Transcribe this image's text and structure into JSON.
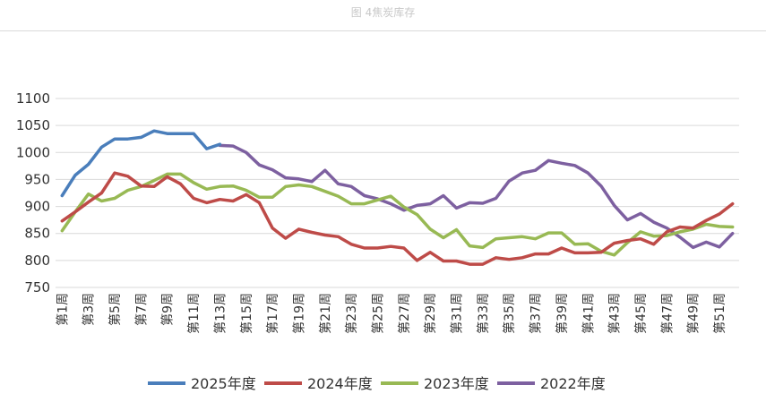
{
  "caption": "图 4焦炭库存",
  "chart_data": {
    "type": "line",
    "title": "",
    "xlabel": "",
    "ylabel": "",
    "ylim": [
      750,
      1100
    ],
    "y_ticks": [
      750,
      800,
      850,
      900,
      950,
      1000,
      1050,
      1100
    ],
    "grid": true,
    "legend_position": "bottom",
    "x_tick_labels": [
      "第1周",
      "第3周",
      "第5周",
      "第7周",
      "第9周",
      "第11周",
      "第13周",
      "第15周",
      "第17周",
      "第19周",
      "第21周",
      "第23周",
      "第25周",
      "第27周",
      "第29周",
      "第31周",
      "第33周",
      "第35周",
      "第37周",
      "第39周",
      "第41周",
      "第43周",
      "第45周",
      "第47周",
      "第49周",
      "第51周"
    ],
    "x_tick_weeks": [
      1,
      3,
      5,
      7,
      9,
      11,
      13,
      15,
      17,
      19,
      21,
      23,
      25,
      27,
      29,
      31,
      33,
      35,
      37,
      39,
      41,
      43,
      45,
      47,
      49,
      51
    ],
    "series": [
      {
        "name": "2025年度",
        "color": "#4a7ebb",
        "start_week": 1,
        "values": [
          920,
          958,
          978,
          1010,
          1025,
          1025,
          1028,
          1040,
          1035,
          1035,
          1035,
          1007,
          1015
        ]
      },
      {
        "name": "2024年度",
        "color": "#be4b48",
        "start_week": 1,
        "values": [
          873,
          890,
          908,
          925,
          962,
          956,
          938,
          937,
          955,
          942,
          915,
          907,
          913,
          910,
          922,
          907,
          860,
          841,
          858,
          852,
          847,
          844,
          830,
          823,
          823,
          826,
          823,
          800,
          815,
          799,
          799,
          793,
          793,
          805,
          802,
          805,
          812,
          812,
          823,
          814,
          814,
          815,
          832,
          837,
          840,
          830,
          853,
          862,
          860,
          874,
          886,
          905
        ]
      },
      {
        "name": "2023年度",
        "color": "#98b954",
        "start_week": 1,
        "values": [
          855,
          890,
          923,
          910,
          915,
          930,
          937,
          948,
          960,
          960,
          944,
          932,
          937,
          938,
          930,
          917,
          917,
          937,
          940,
          937,
          928,
          919,
          905,
          905,
          912,
          919,
          899,
          885,
          858,
          842,
          857,
          827,
          824,
          840,
          842,
          844,
          840,
          851,
          851,
          830,
          831,
          817,
          810,
          833,
          853,
          845,
          846,
          853,
          858,
          867,
          863,
          862
        ]
      },
      {
        "name": "2022年度",
        "color": "#7d60a0",
        "start_week": 13,
        "values": [
          1013,
          1012,
          1000,
          977,
          968,
          953,
          951,
          946,
          967,
          942,
          937,
          920,
          914,
          905,
          893,
          902,
          905,
          920,
          897,
          907,
          906,
          915,
          947,
          962,
          967,
          985,
          980,
          976,
          962,
          938,
          902,
          875,
          887,
          871,
          860,
          843,
          824,
          834,
          825,
          850
        ]
      }
    ]
  }
}
